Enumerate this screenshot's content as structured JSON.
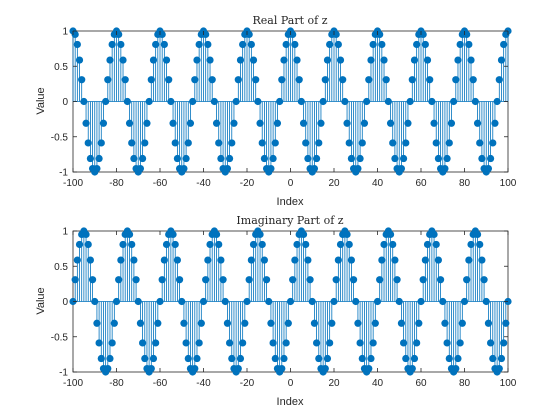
{
  "chart_data": [
    {
      "type": "stem",
      "title": "Real Part of z",
      "xlabel": "Index",
      "ylabel": "Value",
      "xlim": [
        -100,
        100
      ],
      "ylim": [
        -1,
        1
      ],
      "xticks": [
        "-100",
        "-80",
        "-60",
        "-40",
        "-20",
        "0",
        "20",
        "40",
        "60",
        "80",
        "100"
      ],
      "yticks": [
        "1",
        "0.5",
        "0",
        "-0.5",
        "-1"
      ],
      "grid": false,
      "color": "#0072BD",
      "series": [
        {
          "x_start": -100,
          "x_end": 100,
          "x_step": 1,
          "formula": "cos(2*pi*n/20)",
          "period": 20
        }
      ]
    },
    {
      "type": "stem",
      "title": "Imaginary Part of z",
      "xlabel": "Index",
      "ylabel": "Value",
      "xlim": [
        -100,
        100
      ],
      "ylim": [
        -1,
        1
      ],
      "xticks": [
        "-100",
        "-80",
        "-60",
        "-40",
        "-20",
        "0",
        "20",
        "40",
        "60",
        "80",
        "100"
      ],
      "yticks": [
        "1",
        "0.5",
        "0",
        "-0.5",
        "-1"
      ],
      "grid": false,
      "color": "#0072BD",
      "series": [
        {
          "x_start": -100,
          "x_end": 100,
          "x_step": 1,
          "formula": "sin(2*pi*n/20)",
          "period": 20
        }
      ]
    }
  ]
}
